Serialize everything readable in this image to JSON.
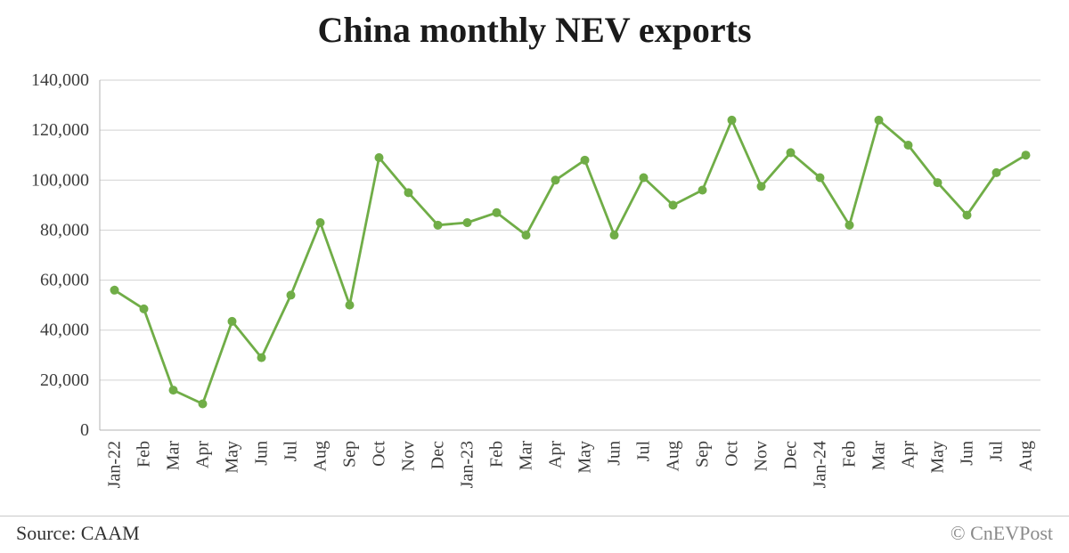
{
  "chart_data": {
    "type": "line",
    "title": "China monthly NEV exports",
    "categories": [
      "Jan-22",
      "Feb",
      "Mar",
      "Apr",
      "May",
      "Jun",
      "Jul",
      "Aug",
      "Sep",
      "Oct",
      "Nov",
      "Dec",
      "Jan-23",
      "Feb",
      "Mar",
      "Apr",
      "May",
      "Jun",
      "Jul",
      "Aug",
      "Sep",
      "Oct",
      "Nov",
      "Dec",
      "Jan-24",
      "Feb",
      "Mar",
      "Apr",
      "May",
      "Jun",
      "Jul",
      "Aug"
    ],
    "values": [
      56000,
      48500,
      16000,
      10500,
      43500,
      29000,
      54000,
      83000,
      50000,
      109000,
      95000,
      82000,
      83000,
      87000,
      78000,
      100000,
      108000,
      78000,
      101000,
      90000,
      96000,
      124000,
      97500,
      111000,
      101000,
      82000,
      124000,
      114000,
      99000,
      86000,
      103000,
      110000
    ],
    "ylim": [
      0,
      140000
    ],
    "ytick_interval": 20000,
    "grid": true,
    "legend": "none",
    "line_color": "#70ad47",
    "grid_color": "#d2d2d2",
    "axis_color": "#b3b3b3",
    "marker": "circle"
  },
  "footer": {
    "source": "Source: CAAM",
    "credit": "© CnEVPost"
  }
}
